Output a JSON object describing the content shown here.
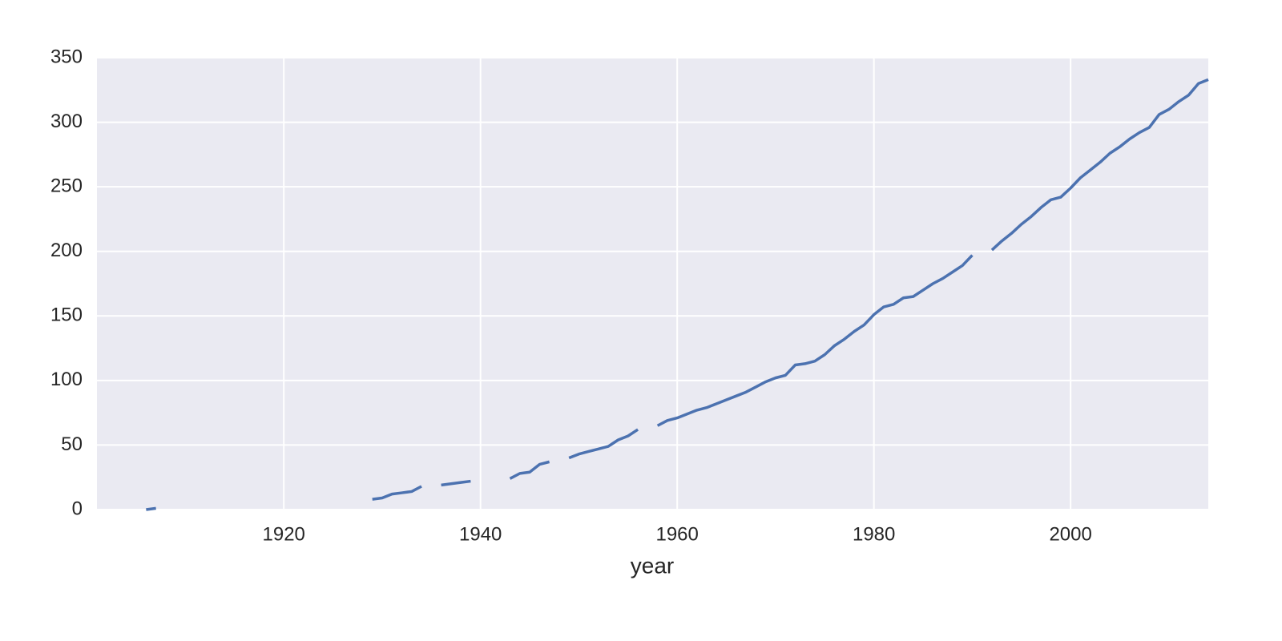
{
  "chart_data": {
    "type": "line",
    "xlabel": "year",
    "x": [
      1906,
      1907,
      1908,
      1909,
      1910,
      1911,
      1912,
      1913,
      1914,
      1915,
      1916,
      1917,
      1918,
      1919,
      1920,
      1921,
      1922,
      1923,
      1924,
      1925,
      1926,
      1927,
      1928,
      1929,
      1930,
      1931,
      1932,
      1933,
      1934,
      1935,
      1936,
      1937,
      1938,
      1939,
      1940,
      1941,
      1942,
      1943,
      1944,
      1945,
      1946,
      1947,
      1948,
      1949,
      1950,
      1951,
      1952,
      1953,
      1954,
      1955,
      1956,
      1957,
      1958,
      1959,
      1960,
      1961,
      1962,
      1963,
      1964,
      1965,
      1966,
      1967,
      1968,
      1969,
      1970,
      1971,
      1972,
      1973,
      1974,
      1975,
      1976,
      1977,
      1978,
      1979,
      1980,
      1981,
      1982,
      1983,
      1984,
      1985,
      1986,
      1987,
      1988,
      1989,
      1990,
      1991,
      1992,
      1993,
      1994,
      1995,
      1996,
      1997,
      1998,
      1999,
      2000,
      2001,
      2002,
      2003,
      2004,
      2005,
      2006,
      2007,
      2008,
      2009,
      2010,
      2011,
      2012,
      2013,
      2014
    ],
    "values": [
      0,
      1,
      null,
      null,
      null,
      null,
      null,
      null,
      null,
      null,
      null,
      null,
      null,
      null,
      null,
      null,
      null,
      null,
      null,
      null,
      null,
      null,
      null,
      8,
      9,
      12,
      13,
      14,
      18,
      null,
      19,
      20,
      21,
      22,
      null,
      null,
      null,
      24,
      28,
      29,
      35,
      37,
      null,
      40,
      43,
      45,
      47,
      49,
      54,
      57,
      62,
      null,
      65,
      69,
      71,
      74,
      77,
      79,
      82,
      85,
      88,
      91,
      95,
      99,
      102,
      104,
      112,
      113,
      115,
      120,
      127,
      132,
      138,
      143,
      151,
      157,
      159,
      164,
      165,
      170,
      175,
      179,
      184,
      189,
      197,
      null,
      201,
      208,
      214,
      221,
      227,
      234,
      240,
      242,
      249,
      257,
      263,
      269,
      276,
      281,
      287,
      292,
      296,
      306,
      310,
      316,
      321,
      330,
      333
    ],
    "color": "#4c72b0",
    "xlim": [
      1901,
      2014
    ],
    "xticks": [
      1920,
      1940,
      1960,
      1980,
      2000
    ],
    "ylim": [
      0,
      350
    ],
    "yticks": [
      0,
      50,
      100,
      150,
      200,
      250,
      300,
      350
    ],
    "grid": true
  }
}
